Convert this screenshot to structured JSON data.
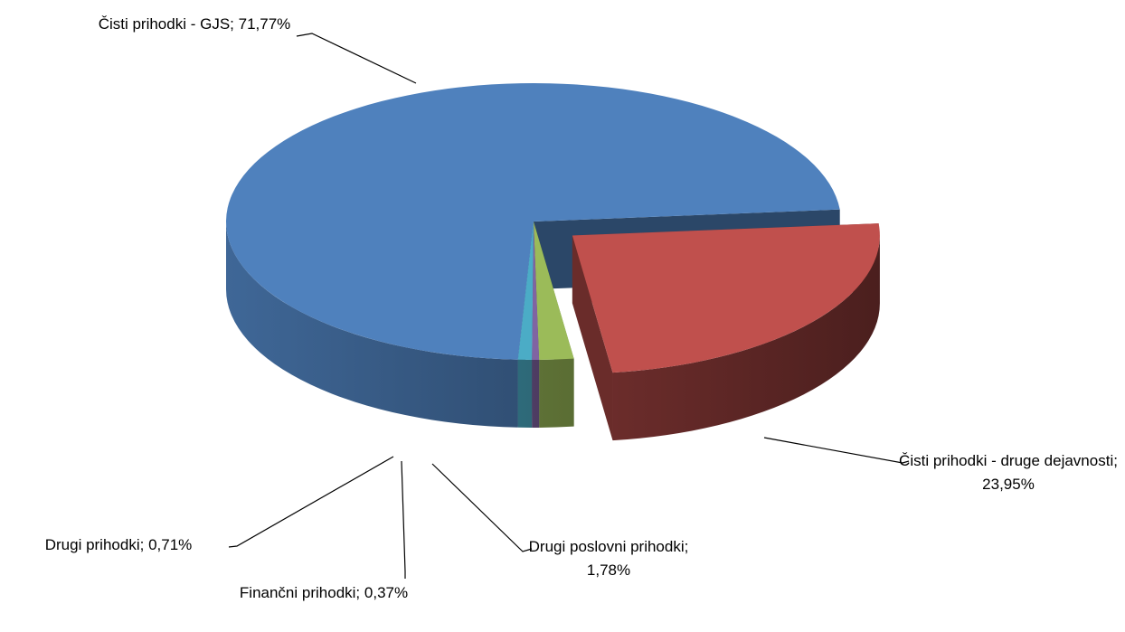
{
  "chart_data": {
    "type": "pie3d",
    "categories": [
      "Čisti prihodki - GJS;",
      "Čisti prihodki - druge dejavnosti;",
      "Drugi poslovni prihodki;",
      "Finančni prihodki;",
      "Drugi prihodki;"
    ],
    "values": [
      71.77,
      23.95,
      1.78,
      0.37,
      0.71
    ],
    "value_labels": [
      "71,77%",
      "23,95%",
      "1,78%",
      "0,37%",
      "0,71%"
    ],
    "colors": [
      "#4f81bd",
      "#c0504d",
      "#9bbb59",
      "#8064a2",
      "#4bacc6"
    ]
  }
}
